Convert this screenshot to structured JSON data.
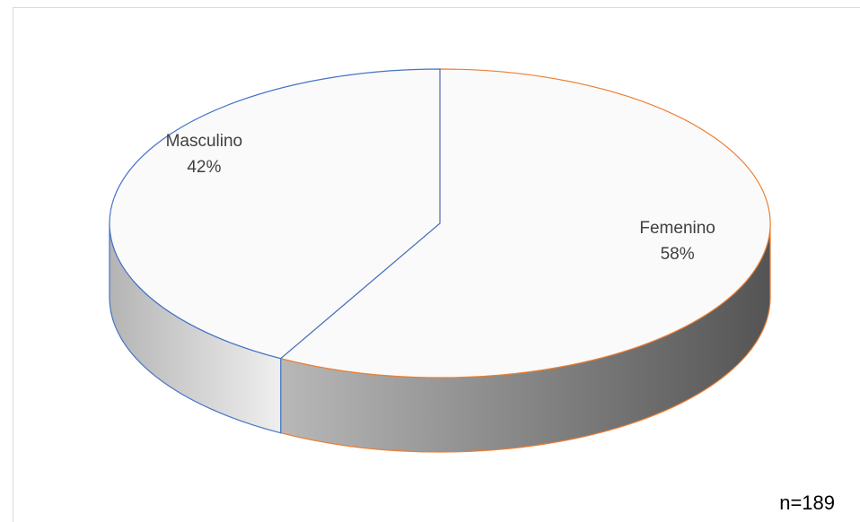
{
  "chart_data": {
    "type": "pie",
    "style": "3d",
    "categories": [
      "Masculino",
      "Femenino"
    ],
    "values": [
      42,
      58
    ],
    "labels": [
      "42%",
      "58%"
    ],
    "colors": [
      "#4472c4",
      "#ed7d31"
    ]
  },
  "annotation": "n=189"
}
